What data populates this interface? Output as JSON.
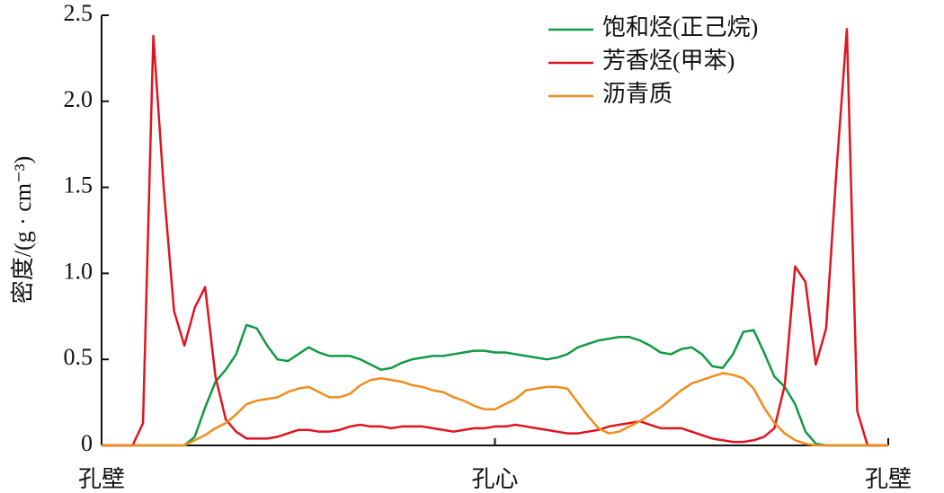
{
  "chart_data": {
    "type": "line",
    "ylabel": "密度/(g · cm⁻³)",
    "categories": [
      "孔壁",
      null,
      null,
      null,
      null,
      null,
      null,
      null,
      null,
      null,
      null,
      null,
      null,
      null,
      null,
      null,
      null,
      null,
      null,
      null,
      null,
      null,
      null,
      null,
      null,
      null,
      null,
      null,
      null,
      null,
      null,
      null,
      null,
      null,
      null,
      null,
      null,
      null,
      "孔心",
      null,
      null,
      null,
      null,
      null,
      null,
      null,
      null,
      null,
      null,
      null,
      null,
      null,
      null,
      null,
      null,
      null,
      null,
      null,
      null,
      null,
      null,
      null,
      null,
      null,
      null,
      null,
      null,
      null,
      null,
      null,
      null,
      null,
      null,
      null,
      null,
      null,
      "孔壁"
    ],
    "series": [
      {
        "name": "饱和烃(正己烷)",
        "color": "#119a45",
        "values": [
          0,
          0,
          0,
          0,
          0,
          0,
          0,
          0,
          0,
          0.05,
          0.22,
          0.37,
          0.44,
          0.53,
          0.7,
          0.68,
          0.58,
          0.5,
          0.49,
          0.53,
          0.57,
          0.54,
          0.52,
          0.52,
          0.52,
          0.5,
          0.47,
          0.44,
          0.45,
          0.48,
          0.5,
          0.51,
          0.52,
          0.52,
          0.53,
          0.54,
          0.55,
          0.55,
          0.54,
          0.54,
          0.53,
          0.52,
          0.51,
          0.5,
          0.51,
          0.53,
          0.57,
          0.59,
          0.61,
          0.62,
          0.63,
          0.63,
          0.61,
          0.58,
          0.54,
          0.53,
          0.56,
          0.57,
          0.53,
          0.46,
          0.45,
          0.53,
          0.66,
          0.67,
          0.54,
          0.4,
          0.34,
          0.24,
          0.08,
          0.01,
          0,
          0,
          0,
          0,
          0,
          0,
          0
        ]
      },
      {
        "name": "芳香烃(甲苯)",
        "color": "#e0141e",
        "values": [
          0,
          0,
          0,
          0,
          0.13,
          2.38,
          1.5,
          0.78,
          0.58,
          0.8,
          0.92,
          0.4,
          0.15,
          0.08,
          0.04,
          0.04,
          0.04,
          0.05,
          0.07,
          0.09,
          0.09,
          0.08,
          0.08,
          0.09,
          0.11,
          0.12,
          0.11,
          0.11,
          0.1,
          0.11,
          0.11,
          0.11,
          0.1,
          0.09,
          0.08,
          0.09,
          0.1,
          0.1,
          0.11,
          0.11,
          0.12,
          0.11,
          0.1,
          0.09,
          0.08,
          0.07,
          0.07,
          0.08,
          0.09,
          0.11,
          0.12,
          0.13,
          0.14,
          0.12,
          0.1,
          0.1,
          0.1,
          0.08,
          0.06,
          0.04,
          0.03,
          0.02,
          0.02,
          0.03,
          0.05,
          0.1,
          0.35,
          1.04,
          0.95,
          0.47,
          0.68,
          1.6,
          2.42,
          0.2,
          0,
          0,
          0
        ]
      },
      {
        "name": "沥青质",
        "color": "#f08c1a",
        "values": [
          0,
          0,
          0,
          0,
          0,
          0,
          0,
          0,
          0,
          0.03,
          0.06,
          0.1,
          0.13,
          0.18,
          0.24,
          0.26,
          0.27,
          0.28,
          0.31,
          0.33,
          0.34,
          0.31,
          0.28,
          0.28,
          0.3,
          0.35,
          0.38,
          0.39,
          0.38,
          0.37,
          0.35,
          0.34,
          0.32,
          0.31,
          0.28,
          0.26,
          0.23,
          0.21,
          0.21,
          0.24,
          0.27,
          0.32,
          0.33,
          0.34,
          0.34,
          0.33,
          0.25,
          0.17,
          0.1,
          0.07,
          0.08,
          0.11,
          0.14,
          0.18,
          0.22,
          0.27,
          0.32,
          0.36,
          0.38,
          0.4,
          0.42,
          0.41,
          0.39,
          0.33,
          0.22,
          0.13,
          0.07,
          0.03,
          0.01,
          0,
          0,
          0,
          0,
          0,
          0,
          0,
          0
        ]
      }
    ],
    "ylim": [
      0,
      2.5
    ],
    "yticks": [
      0,
      0.5,
      {
        "value": 1,
        "label": "1.0"
      },
      1.5,
      {
        "value": 2,
        "label": "2.0"
      },
      2.5
    ],
    "legend": "upper right"
  }
}
